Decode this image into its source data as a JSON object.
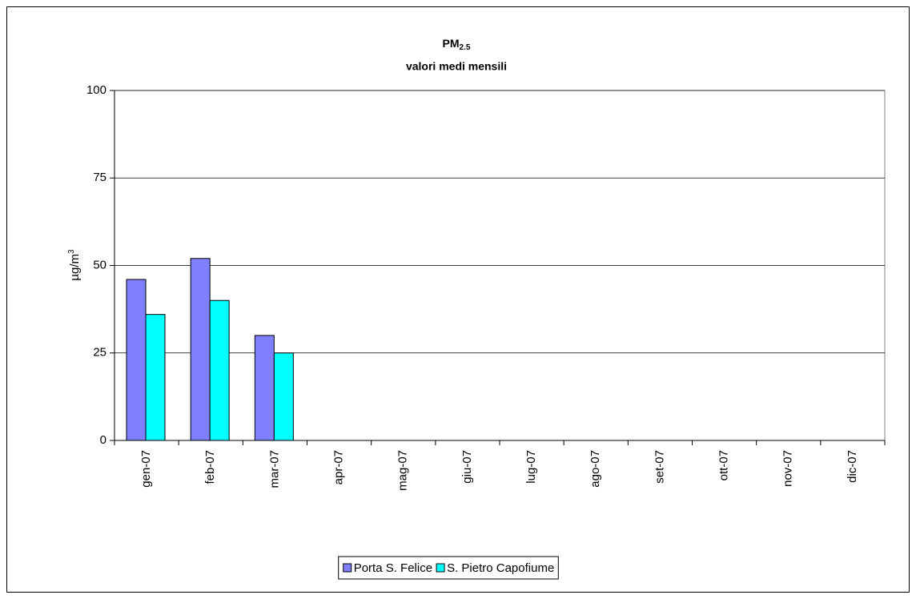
{
  "chart_data": {
    "type": "bar",
    "title": "PM",
    "title_subscript": "2.5",
    "subtitle": "valori medi mensili",
    "ylabel": "µg/m",
    "ylabel_superscript": "3",
    "categories": [
      "gen-07",
      "feb-07",
      "mar-07",
      "apr-07",
      "mag-07",
      "giu-07",
      "lug-07",
      "ago-07",
      "set-07",
      "ott-07",
      "nov-07",
      "dic-07"
    ],
    "series": [
      {
        "name": "Porta S. Felice",
        "color": "#8080ff",
        "values": [
          46,
          52,
          30,
          null,
          null,
          null,
          null,
          null,
          null,
          null,
          null,
          null
        ]
      },
      {
        "name": "S. Pietro Capofiume",
        "color": "#00ffff",
        "values": [
          36,
          40,
          25,
          null,
          null,
          null,
          null,
          null,
          null,
          null,
          null,
          null
        ]
      }
    ],
    "ylim": [
      0,
      100
    ],
    "yticks": [
      0,
      25,
      50,
      75,
      100
    ],
    "grid": true
  }
}
